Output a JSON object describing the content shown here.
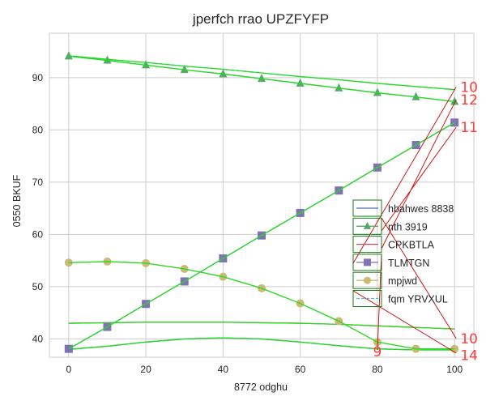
{
  "chart_data": {
    "type": "line",
    "title": "jperfch rrao UPZFYFP",
    "xlabel": "8772 odghu",
    "ylabel": "0550 BKUF",
    "xlim": [
      -5,
      105
    ],
    "ylim": [
      36.5,
      98.5
    ],
    "x_ticks": [
      0,
      20,
      40,
      60,
      80,
      100
    ],
    "y_ticks": [
      40,
      50,
      60,
      70,
      80,
      90
    ],
    "grid": true,
    "legend_position": "center-right",
    "x": [
      0,
      10,
      20,
      30,
      40,
      50,
      60,
      70,
      80,
      90,
      100
    ],
    "series": [
      {
        "name": "hbahwes 8838",
        "color": "#4c72b0",
        "style": "solid",
        "marker": "none",
        "values": [
          38.0,
          38.6,
          39.4,
          40.0,
          40.2,
          40.0,
          39.4,
          38.7,
          38.1,
          37.9,
          37.9
        ]
      },
      {
        "name": "nth 3919",
        "color": "#55a868",
        "style": "solid",
        "marker": "triangle",
        "values": [
          94.1,
          93.3,
          92.4,
          91.5,
          90.7,
          89.8,
          88.9,
          88.0,
          87.1,
          86.3,
          85.4
        ]
      },
      {
        "name": "CPKBTLA",
        "color": "#c44e52",
        "style": "solid",
        "marker": "none",
        "values": [
          43.0,
          43.1,
          43.2,
          43.2,
          43.2,
          43.1,
          43.0,
          42.8,
          42.5,
          42.2,
          41.9
        ]
      },
      {
        "name": "TLMTGN",
        "color": "#8172b2",
        "style": "solid",
        "marker": "square",
        "values": [
          38.1,
          42.3,
          46.7,
          51.0,
          55.4,
          59.8,
          64.1,
          68.4,
          72.8,
          77.1,
          81.4
        ]
      },
      {
        "name": "mpjwd",
        "color": "#ccb974",
        "style": "solid",
        "marker": "circle",
        "values": [
          54.6,
          54.8,
          54.5,
          53.4,
          51.9,
          49.7,
          46.8,
          43.4,
          39.4,
          38.1,
          38.1
        ]
      },
      {
        "name": "fqm YRVXUL",
        "color": "#64b5cd",
        "style": "dashed",
        "marker": "none",
        "values": [
          94.2,
          93.5,
          92.9,
          92.2,
          91.6,
          90.9,
          90.2,
          89.6,
          88.9,
          88.3,
          87.7
        ]
      }
    ],
    "annotations": [
      {
        "text": "10",
        "x": 101.5,
        "y": 88.2
      },
      {
        "text": "12",
        "x": 101.5,
        "y": 85.8
      },
      {
        "text": "11",
        "x": 101.5,
        "y": 80.5
      },
      {
        "text": "10",
        "x": 101.5,
        "y": 40.1
      },
      {
        "text": "9",
        "x": 80.0,
        "y": 37.6
      },
      {
        "text": "14",
        "x": 101.5,
        "y": 36.9
      }
    ],
    "colors": {
      "fit_line": "#22dd22",
      "connector": "#cc0000",
      "legend_border": "#1a7a1a",
      "grid": "#cccccc",
      "frame": "#cccccc"
    }
  }
}
